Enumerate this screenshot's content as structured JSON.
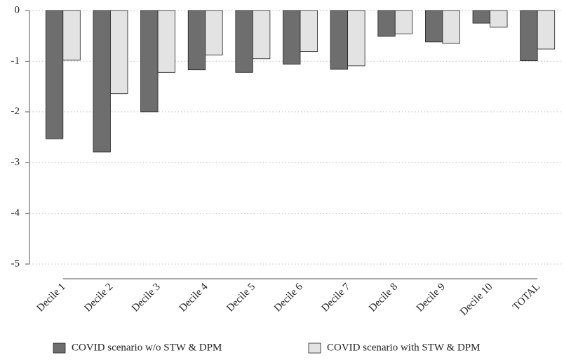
{
  "chart_data": {
    "type": "bar",
    "categories": [
      "Decile 1",
      "Decile 2",
      "Decile 3",
      "Decile 4",
      "Decile 5",
      "Decile 6",
      "Decile 7",
      "Decile 8",
      "Decile 9",
      "Decile 10",
      "TOTAL"
    ],
    "series": [
      {
        "name": "COVID scenario w/o STW & DPM",
        "color": "#6e6e6e",
        "values": [
          -2.53,
          -2.79,
          -2.0,
          -1.17,
          -1.22,
          -1.06,
          -1.16,
          -0.51,
          -0.62,
          -0.25,
          -0.99
        ]
      },
      {
        "name": "COVID scenario with STW & DPM",
        "color": "#e3e3e3",
        "values": [
          -0.98,
          -1.64,
          -1.22,
          -0.88,
          -0.95,
          -0.81,
          -1.09,
          -0.46,
          -0.65,
          -0.33,
          -0.76
        ]
      }
    ],
    "ylim": [
      -5,
      0
    ],
    "yticks": [
      -5,
      -4,
      -3,
      -2,
      -1,
      0
    ],
    "grid": true,
    "legend": "bottom"
  }
}
